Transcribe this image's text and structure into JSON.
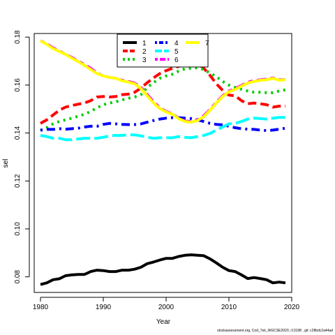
{
  "chart_data": {
    "type": "line",
    "xlabel": "Year",
    "ylabel": "sel",
    "xlim": [
      1979,
      2020
    ],
    "ylim": [
      0.0735,
      0.1815
    ],
    "xticks": [
      1980,
      1990,
      2000,
      2010,
      2020
    ],
    "yticks": [
      0.08,
      0.1,
      0.12,
      0.14,
      0.16,
      0.18
    ],
    "ytick_labels": [
      "0.08",
      "0.10",
      "0.12",
      "0.14",
      "0.16",
      "0.18"
    ],
    "legend_position": "top-center",
    "x": [
      1980,
      1981,
      1982,
      1983,
      1984,
      1985,
      1986,
      1987,
      1988,
      1989,
      1990,
      1991,
      1992,
      1993,
      1994,
      1995,
      1996,
      1997,
      1998,
      1999,
      2000,
      2001,
      2002,
      2003,
      2004,
      2005,
      2006,
      2007,
      2008,
      2009,
      2010,
      2011,
      2012,
      2013,
      2014,
      2015,
      2016,
      2017,
      2018,
      2019
    ],
    "series": [
      {
        "name": "1",
        "color": "#000000",
        "dash": "solid",
        "values": [
          0.0768,
          0.0775,
          0.0788,
          0.0792,
          0.0805,
          0.0808,
          0.081,
          0.081,
          0.0822,
          0.0828,
          0.0826,
          0.0822,
          0.0822,
          0.0828,
          0.0828,
          0.0832,
          0.084,
          0.0855,
          0.0862,
          0.087,
          0.0877,
          0.0877,
          0.0885,
          0.089,
          0.0892,
          0.089,
          0.0888,
          0.0875,
          0.0858,
          0.084,
          0.0826,
          0.0822,
          0.0808,
          0.0793,
          0.0797,
          0.0793,
          0.0788,
          0.0775,
          0.0778,
          0.0775
        ]
      },
      {
        "name": "2",
        "color": "#ff0000",
        "dash": "dashed",
        "values": [
          0.144,
          0.1455,
          0.1475,
          0.1495,
          0.1508,
          0.1515,
          0.152,
          0.1525,
          0.1535,
          0.155,
          0.1552,
          0.155,
          0.1552,
          0.156,
          0.1562,
          0.157,
          0.1588,
          0.161,
          0.163,
          0.1648,
          0.166,
          0.167,
          0.1678,
          0.1685,
          0.1688,
          0.169,
          0.167,
          0.164,
          0.1605,
          0.1578,
          0.1558,
          0.1555,
          0.1535,
          0.1522,
          0.1525,
          0.1522,
          0.1518,
          0.1508,
          0.1512,
          0.1512
        ]
      },
      {
        "name": "3",
        "color": "#00cd00",
        "dash": "dotted",
        "values": [
          0.141,
          0.1422,
          0.1438,
          0.1448,
          0.1455,
          0.1462,
          0.147,
          0.1478,
          0.149,
          0.1505,
          0.1518,
          0.1525,
          0.153,
          0.1538,
          0.1545,
          0.155,
          0.156,
          0.159,
          0.161,
          0.1628,
          0.1638,
          0.1645,
          0.1658,
          0.1668,
          0.167,
          0.1672,
          0.1665,
          0.165,
          0.1635,
          0.1615,
          0.16,
          0.159,
          0.1582,
          0.1575,
          0.157,
          0.157,
          0.1568,
          0.1568,
          0.1575,
          0.158
        ]
      },
      {
        "name": "4",
        "color": "#0000ff",
        "dash": "dotdash",
        "values": [
          0.1412,
          0.1415,
          0.1415,
          0.1418,
          0.1416,
          0.1418,
          0.142,
          0.1425,
          0.1428,
          0.1428,
          0.1436,
          0.144,
          0.1438,
          0.1436,
          0.1435,
          0.1435,
          0.1438,
          0.1445,
          0.1452,
          0.1458,
          0.1462,
          0.1464,
          0.1464,
          0.1462,
          0.146,
          0.1455,
          0.1448,
          0.144,
          0.1436,
          0.1434,
          0.1428,
          0.1422,
          0.1418,
          0.1416,
          0.1415,
          0.1412,
          0.141,
          0.1412,
          0.1416,
          0.142
        ]
      },
      {
        "name": "5",
        "color": "#00ffff",
        "dash": "longdash",
        "values": [
          0.139,
          0.1385,
          0.1378,
          0.1378,
          0.1372,
          0.1372,
          0.1375,
          0.1378,
          0.1378,
          0.1378,
          0.1382,
          0.1388,
          0.139,
          0.139,
          0.1392,
          0.1392,
          0.1388,
          0.1382,
          0.1378,
          0.138,
          0.138,
          0.138,
          0.1385,
          0.1382,
          0.138,
          0.1385,
          0.139,
          0.1398,
          0.1412,
          0.1425,
          0.1438,
          0.144,
          0.1448,
          0.1458,
          0.1462,
          0.146,
          0.1458,
          0.1462,
          0.1465,
          0.1465
        ]
      },
      {
        "name": "6",
        "color": "#ff00ff",
        "dash": "twodash",
        "values": [
          0.1785,
          0.1772,
          0.1755,
          0.1742,
          0.1728,
          0.1715,
          0.17,
          0.1685,
          0.167,
          0.165,
          0.1638,
          0.1632,
          0.1628,
          0.162,
          0.1615,
          0.1608,
          0.159,
          0.156,
          0.153,
          0.1505,
          0.149,
          0.148,
          0.1462,
          0.145,
          0.1448,
          0.1455,
          0.1472,
          0.1498,
          0.1528,
          0.1555,
          0.1575,
          0.1585,
          0.1598,
          0.1612,
          0.1618,
          0.1622,
          0.1625,
          0.163,
          0.1622,
          0.1622
        ]
      },
      {
        "name": "7",
        "color": "#ffff00",
        "dash": "solid",
        "values": [
          0.1785,
          0.177,
          0.1752,
          0.174,
          0.1728,
          0.1712,
          0.1698,
          0.1682,
          0.1665,
          0.1648,
          0.1638,
          0.1632,
          0.1628,
          0.1618,
          0.1612,
          0.1605,
          0.1585,
          0.1555,
          0.1525,
          0.1502,
          0.1488,
          0.1478,
          0.146,
          0.1448,
          0.1445,
          0.1452,
          0.1468,
          0.1495,
          0.1525,
          0.1552,
          0.1572,
          0.1582,
          0.1595,
          0.1608,
          0.1615,
          0.162,
          0.1622,
          0.1628,
          0.162,
          0.1622
        ]
      }
    ]
  },
  "footer": "stockassessment.org,  Cod_7ek_WGCSE2020, r13198 ,  git:  c28bdc2a44ad"
}
